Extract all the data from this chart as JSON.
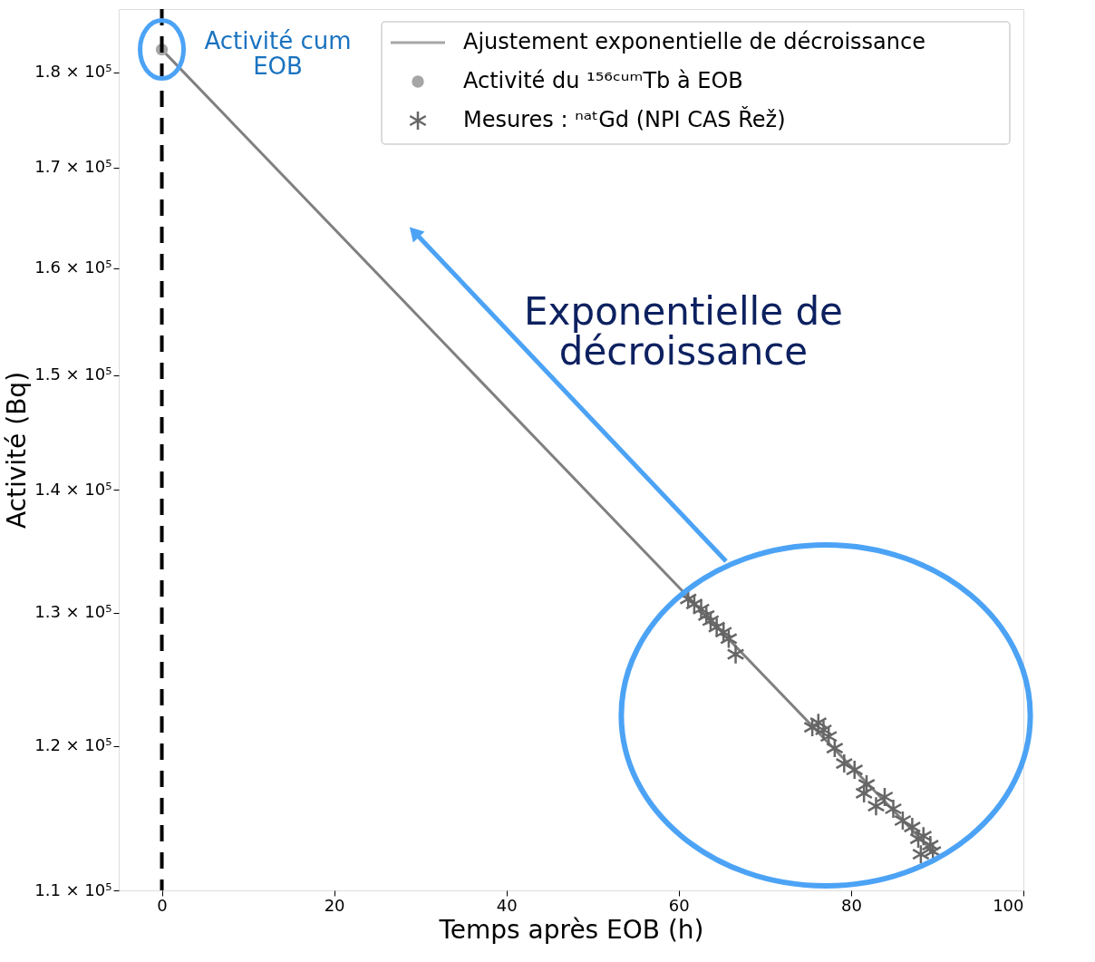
{
  "chart_data": {
    "type": "scatter",
    "xlabel": "Temps après EOB (h)",
    "ylabel": "Activité (Bq)",
    "xlim": [
      -5,
      100
    ],
    "xticks": [
      0,
      20,
      40,
      60,
      80,
      100
    ],
    "ylim": [
      110000,
      187000
    ],
    "yticks": [
      {
        "value": 110000,
        "label": "1.1 × 10⁵"
      },
      {
        "value": 120000,
        "label": "1.2 × 10⁵"
      },
      {
        "value": 130000,
        "label": "1.3 × 10⁵"
      },
      {
        "value": 140000,
        "label": "1.4 × 10⁵"
      },
      {
        "value": 150000,
        "label": "1.5 × 10⁵"
      },
      {
        "value": 160000,
        "label": "1.6 × 10⁵"
      },
      {
        "value": 170000,
        "label": "1.7 × 10⁵"
      },
      {
        "value": 180000,
        "label": "1.8 × 10⁵"
      }
    ],
    "log": "y",
    "grid": false,
    "legend": "top right",
    "series": [
      {
        "name": "Ajustement exponentielle de décroissance",
        "type": "line",
        "color": "#808080",
        "line_style": "solid",
        "marker": "none",
        "x": [
          0,
          89.5
        ],
        "values": [
          182500,
          112600
        ]
      },
      {
        "name": "Activité du ¹⁵⁶ᶜᵘᵐTb à EOB",
        "color": "#a6a6a6",
        "marker": "circle",
        "x": [
          0
        ],
        "values": [
          182500
        ]
      },
      {
        "name": "Mesures : ⁿᵃᵗGd (NPI CAS Řež)",
        "color": "#666666",
        "marker": "cross",
        "x": [
          61.1,
          61.8,
          62.6,
          63.2,
          63.7,
          64.4,
          65.2,
          65.8,
          66.6,
          75.5,
          76.2,
          76.8,
          77.4,
          78.1,
          79.2,
          80.4,
          81.8,
          81.5,
          82.9,
          83.9,
          84.9,
          86.0,
          87.1,
          87.8,
          88.4,
          89.2,
          88.1,
          89.5
        ],
        "values": [
          131100,
          130700,
          130300,
          129800,
          129400,
          128900,
          128500,
          128000,
          126800,
          121350,
          121680,
          121160,
          120680,
          119840,
          118730,
          118280,
          117250,
          116620,
          115720,
          116360,
          115540,
          114720,
          114280,
          113470,
          113650,
          113040,
          112420,
          112610
        ]
      }
    ],
    "ref_lines": [
      {
        "axis": "x",
        "value": 0,
        "color": "#000000",
        "line_style": "dashed"
      }
    ],
    "annotations": [
      {
        "text": "Activité cum\nEOB",
        "x": 0,
        "y": 182500
      },
      "Exponentielle de\ndécroissance"
    ]
  }
}
